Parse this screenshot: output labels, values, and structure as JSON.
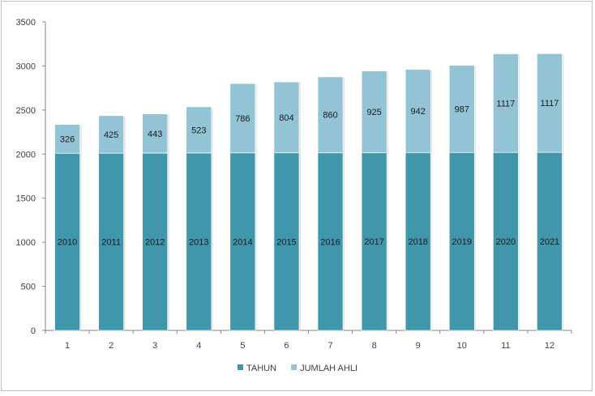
{
  "chart_data": {
    "type": "bar",
    "stacked": true,
    "categories": [
      "1",
      "2",
      "3",
      "4",
      "5",
      "6",
      "7",
      "8",
      "9",
      "10",
      "11",
      "12"
    ],
    "series": [
      {
        "name": "TAHUN",
        "color": "#4097ab",
        "values": [
          2010,
          2011,
          2012,
          2013,
          2014,
          2015,
          2016,
          2017,
          2018,
          2019,
          2020,
          2021
        ]
      },
      {
        "name": "JUMLAH AHLI",
        "color": "#93c4d6",
        "values": [
          326,
          425,
          443,
          523,
          786,
          804,
          860,
          925,
          942,
          987,
          1117,
          1117
        ]
      }
    ],
    "yticks": [
      0,
      500,
      1000,
      1500,
      2000,
      2500,
      3000,
      3500
    ],
    "ylim": [
      0,
      3500
    ],
    "grid": false,
    "legend": "bottom-center",
    "title": "",
    "xlabel": "",
    "ylabel": ""
  }
}
